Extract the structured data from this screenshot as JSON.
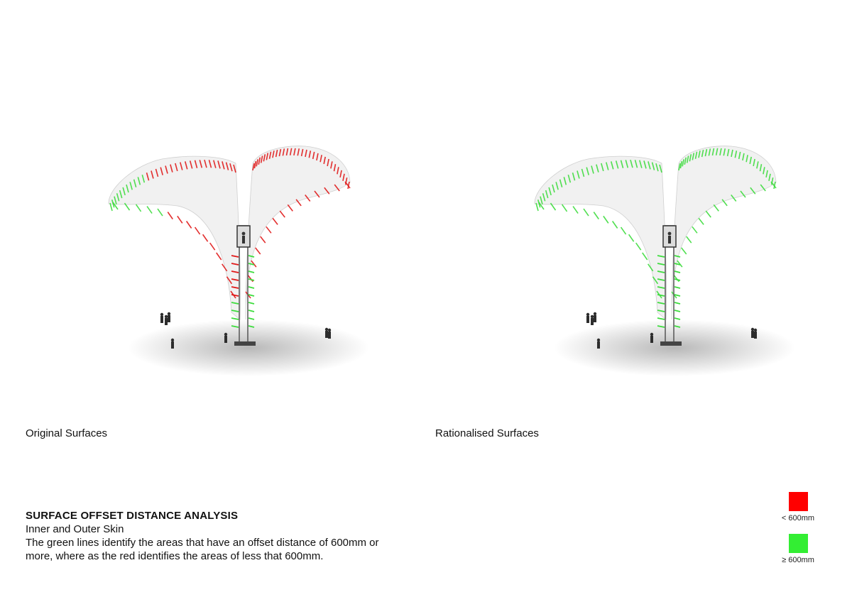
{
  "panels": [
    {
      "id": "original",
      "caption": "Original Surfaces",
      "mode": "mixed"
    },
    {
      "id": "rationalised",
      "caption": "Rationalised Surfaces",
      "mode": "green"
    }
  ],
  "analysis": {
    "title": "SURFACE OFFSET DISTANCE ANALYSIS",
    "subtitle": "Inner and Outer Skin",
    "description": "The green lines identify the areas that have an offset distance of 600mm or more, where as the red identifies the areas of less that 600mm."
  },
  "legend": [
    {
      "label": "< 600mm",
      "color": "#ff0000"
    },
    {
      "label": "≥ 600mm",
      "color": "#33ee33"
    }
  ],
  "colors": {
    "red": "#e01818",
    "green": "#3ddc3d",
    "surface": "#f1f1f1"
  }
}
